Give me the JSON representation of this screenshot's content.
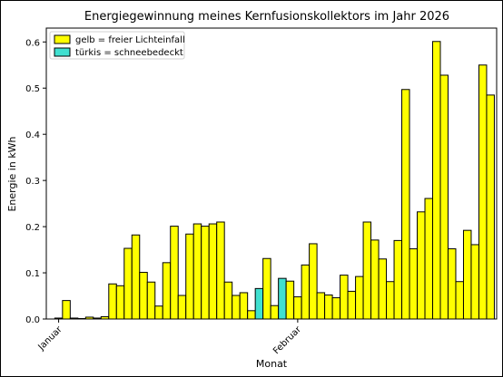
{
  "chart_data": {
    "type": "bar",
    "title": "Energiegewinnung meines Kernfusionskollektors im Jahr 2026",
    "xlabel": "Monat",
    "ylabel": "Energie in kWh",
    "ylim": [
      0,
      0.63
    ],
    "yticks": [
      0.0,
      0.1,
      0.2,
      0.3,
      0.4,
      0.5,
      0.6
    ],
    "ytick_labels": [
      "0.0",
      "0.1",
      "0.2",
      "0.3",
      "0.4",
      "0.5",
      "0.6"
    ],
    "x_start_date": "2026-01-01",
    "xticks": [
      {
        "label": "Januar",
        "date": "2026-01-01"
      },
      {
        "label": "Februar",
        "date": "2026-02-01"
      }
    ],
    "grid": false,
    "legend": {
      "position": "top-left",
      "entries": [
        {
          "label": "gelb = freier Lichteinfall",
          "color": "#ffff00"
        },
        {
          "label": "türkis = schneebedeckt",
          "color": "#40e0d0"
        }
      ]
    },
    "colors": {
      "clear": "#ffff00",
      "snow": "#40e0d0",
      "edge": "#000000"
    },
    "series": [
      {
        "date": "2026-01-01",
        "value": 0.002,
        "snow": false
      },
      {
        "date": "2026-01-02",
        "value": 0.04,
        "snow": false
      },
      {
        "date": "2026-01-03",
        "value": 0.002,
        "snow": false
      },
      {
        "date": "2026-01-04",
        "value": 0.001,
        "snow": false
      },
      {
        "date": "2026-01-05",
        "value": 0.004,
        "snow": false
      },
      {
        "date": "2026-01-06",
        "value": 0.002,
        "snow": false
      },
      {
        "date": "2026-01-07",
        "value": 0.005,
        "snow": false
      },
      {
        "date": "2026-01-08",
        "value": 0.076,
        "snow": false
      },
      {
        "date": "2026-01-09",
        "value": 0.072,
        "snow": false
      },
      {
        "date": "2026-01-10",
        "value": 0.153,
        "snow": false
      },
      {
        "date": "2026-01-11",
        "value": 0.182,
        "snow": false
      },
      {
        "date": "2026-01-12",
        "value": 0.101,
        "snow": false
      },
      {
        "date": "2026-01-13",
        "value": 0.08,
        "snow": false
      },
      {
        "date": "2026-01-14",
        "value": 0.028,
        "snow": false
      },
      {
        "date": "2026-01-15",
        "value": 0.122,
        "snow": false
      },
      {
        "date": "2026-01-16",
        "value": 0.201,
        "snow": false
      },
      {
        "date": "2026-01-17",
        "value": 0.051,
        "snow": false
      },
      {
        "date": "2026-01-18",
        "value": 0.184,
        "snow": false
      },
      {
        "date": "2026-01-19",
        "value": 0.206,
        "snow": false
      },
      {
        "date": "2026-01-20",
        "value": 0.201,
        "snow": false
      },
      {
        "date": "2026-01-21",
        "value": 0.206,
        "snow": false
      },
      {
        "date": "2026-01-22",
        "value": 0.21,
        "snow": false
      },
      {
        "date": "2026-01-23",
        "value": 0.08,
        "snow": false
      },
      {
        "date": "2026-01-24",
        "value": 0.051,
        "snow": false
      },
      {
        "date": "2026-01-25",
        "value": 0.057,
        "snow": false
      },
      {
        "date": "2026-01-26",
        "value": 0.018,
        "snow": false
      },
      {
        "date": "2026-01-27",
        "value": 0.066,
        "snow": true
      },
      {
        "date": "2026-01-28",
        "value": 0.131,
        "snow": false
      },
      {
        "date": "2026-01-29",
        "value": 0.029,
        "snow": false
      },
      {
        "date": "2026-01-30",
        "value": 0.088,
        "snow": true
      },
      {
        "date": "2026-01-31",
        "value": 0.082,
        "snow": false
      },
      {
        "date": "2026-02-01",
        "value": 0.048,
        "snow": false
      },
      {
        "date": "2026-02-02",
        "value": 0.117,
        "snow": false
      },
      {
        "date": "2026-02-03",
        "value": 0.163,
        "snow": false
      },
      {
        "date": "2026-02-04",
        "value": 0.057,
        "snow": false
      },
      {
        "date": "2026-02-05",
        "value": 0.052,
        "snow": false
      },
      {
        "date": "2026-02-06",
        "value": 0.046,
        "snow": false
      },
      {
        "date": "2026-02-07",
        "value": 0.095,
        "snow": false
      },
      {
        "date": "2026-02-08",
        "value": 0.06,
        "snow": false
      },
      {
        "date": "2026-02-09",
        "value": 0.092,
        "snow": false
      },
      {
        "date": "2026-02-10",
        "value": 0.21,
        "snow": false
      },
      {
        "date": "2026-02-11",
        "value": 0.171,
        "snow": false
      },
      {
        "date": "2026-02-12",
        "value": 0.13,
        "snow": false
      },
      {
        "date": "2026-02-13",
        "value": 0.081,
        "snow": false
      },
      {
        "date": "2026-02-14",
        "value": 0.17,
        "snow": false
      },
      {
        "date": "2026-02-15",
        "value": 0.497,
        "snow": false
      },
      {
        "date": "2026-02-16",
        "value": 0.152,
        "snow": false
      },
      {
        "date": "2026-02-17",
        "value": 0.232,
        "snow": false
      },
      {
        "date": "2026-02-18",
        "value": 0.261,
        "snow": false
      },
      {
        "date": "2026-02-19",
        "value": 0.601,
        "snow": false
      },
      {
        "date": "2026-02-20",
        "value": 0.528,
        "snow": false
      },
      {
        "date": "2026-02-21",
        "value": 0.152,
        "snow": false
      },
      {
        "date": "2026-02-22",
        "value": 0.081,
        "snow": false
      },
      {
        "date": "2026-02-23",
        "value": 0.192,
        "snow": false
      },
      {
        "date": "2026-02-24",
        "value": 0.161,
        "snow": false
      },
      {
        "date": "2026-02-25",
        "value": 0.55,
        "snow": false
      },
      {
        "date": "2026-02-26",
        "value": 0.485,
        "snow": false
      }
    ]
  }
}
